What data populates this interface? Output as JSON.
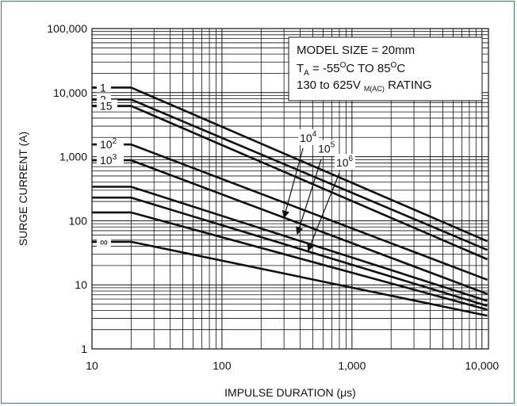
{
  "chart_data": {
    "type": "line",
    "title": "",
    "xlabel": "IMPULSE DURATION (μs)",
    "ylabel": "SURGE CURRENT (A)",
    "xscale": "log",
    "yscale": "log",
    "xlim": [
      10,
      10000
    ],
    "ylim": [
      1,
      100000
    ],
    "x_tick_labels": [
      "10",
      "100",
      "1,000",
      "10,000"
    ],
    "y_tick_labels": [
      "1",
      "10",
      "100",
      "1,000",
      "10,000",
      "100,000"
    ],
    "grid": true,
    "annotation": {
      "line1": "MODEL SIZE = 20mm",
      "line2_prefix": "T",
      "line2_sub": "A",
      "line2_main": " = -55",
      "line2_deg1": "O",
      "line2_mid": "C TO 85",
      "line2_deg2": "O",
      "line2_end": "C",
      "line3_prefix": "130 to 625V",
      "line3_sub": "M(AC)",
      "line3_end": " RATING"
    },
    "series": [
      {
        "name": "1",
        "x": [
          10,
          20,
          11000
        ],
        "y": [
          12000,
          12000,
          48
        ]
      },
      {
        "name": "2",
        "x": [
          10,
          20,
          11000
        ],
        "y": [
          7800,
          7800,
          35
        ]
      },
      {
        "name": "15",
        "x": [
          10,
          20,
          11000
        ],
        "y": [
          6200,
          6200,
          25
        ]
      },
      {
        "name": "10²",
        "x": [
          10,
          20,
          11000
        ],
        "y": [
          1550,
          1550,
          12
        ]
      },
      {
        "name": "10³",
        "x": [
          10,
          20,
          11000
        ],
        "y": [
          880,
          880,
          7.2
        ]
      },
      {
        "name": "10⁴",
        "x": [
          10,
          20,
          11000
        ],
        "y": [
          340,
          340,
          5.6
        ]
      },
      {
        "name": "10⁵",
        "x": [
          10,
          20,
          11000
        ],
        "y": [
          230,
          230,
          4.7
        ]
      },
      {
        "name": "10⁶",
        "x": [
          10,
          20,
          11000
        ],
        "y": [
          135,
          135,
          4.1
        ]
      },
      {
        "name": "∞",
        "x": [
          10,
          20,
          11000
        ],
        "y": [
          47,
          47,
          3.3
        ]
      }
    ],
    "curve_labels_left": [
      {
        "text": "1",
        "sup": "",
        "y": 12000
      },
      {
        "text": "2",
        "sup": "",
        "y": 7800
      },
      {
        "text": "15",
        "sup": "",
        "y": 6200
      },
      {
        "text": "10",
        "sup": "2",
        "y": 1550
      },
      {
        "text": "10",
        "sup": "3",
        "y": 880
      },
      {
        "text": "∞",
        "sup": "",
        "y": 47
      }
    ],
    "curve_labels_pointer": [
      {
        "base": "10",
        "sup": "4",
        "from": [
          420,
          1700
        ],
        "to": [
          300,
          112
        ]
      },
      {
        "base": "10",
        "sup": "5",
        "from": [
          580,
          1150
        ],
        "to": [
          380,
          62
        ]
      },
      {
        "base": "10",
        "sup": "6",
        "from": [
          800,
          700
        ],
        "to": [
          460,
          34
        ]
      }
    ]
  }
}
